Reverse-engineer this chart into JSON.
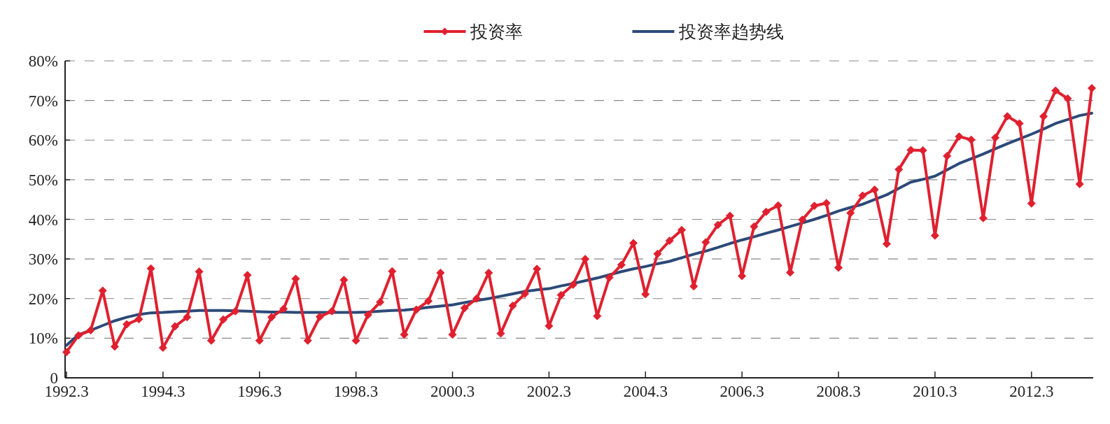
{
  "chart_data": {
    "type": "line",
    "categories": [
      "1992.3",
      null,
      null,
      null,
      null,
      null,
      null,
      null,
      "1994.3",
      null,
      null,
      null,
      null,
      null,
      null,
      null,
      "1996.3",
      null,
      null,
      null,
      null,
      null,
      null,
      null,
      "1998.3",
      null,
      null,
      null,
      null,
      null,
      null,
      null,
      "2000.3",
      null,
      null,
      null,
      null,
      null,
      null,
      null,
      "2002.3",
      null,
      null,
      null,
      null,
      null,
      null,
      null,
      "2004.3",
      null,
      null,
      null,
      null,
      null,
      null,
      null,
      "2006.3",
      null,
      null,
      null,
      null,
      null,
      null,
      null,
      "2008.3",
      null,
      null,
      null,
      null,
      null,
      null,
      null,
      "2010.3",
      null,
      null,
      null,
      null,
      null,
      null,
      null,
      "2012.3",
      null,
      null,
      null,
      null,
      null
    ],
    "series": [
      {
        "name": "投资率",
        "color": "#e0202f",
        "marker": "diamond",
        "values": [
          6.5,
          10.7,
          12,
          22,
          7.9,
          13.5,
          14.8,
          27.6,
          7.6,
          13,
          15.3,
          26.8,
          9.4,
          14.7,
          16.8,
          25.9,
          9.4,
          15.3,
          17.4,
          25,
          9.4,
          15.4,
          16.8,
          24.7,
          9.4,
          15.9,
          19.1,
          26.9,
          10.9,
          17.2,
          19.4,
          26.5,
          10.9,
          17.6,
          20,
          26.5,
          11.2,
          18.2,
          21.2,
          27.5,
          13.1,
          20.9,
          23.5,
          30,
          15.6,
          25.3,
          28.5,
          34,
          21.1,
          31.3,
          34.6,
          37.3,
          23.1,
          34.2,
          38.6,
          40.9,
          25.7,
          38.2,
          41.9,
          43.5,
          26.6,
          39.9,
          43.4,
          44.1,
          27.8,
          41.6,
          46,
          47.5,
          33.8,
          52.6,
          57.5,
          57.4,
          35.9,
          56,
          60.9,
          60.1,
          40.3,
          60.6,
          66,
          64.2,
          44,
          66,
          72.5,
          70.5,
          48.9,
          73.1
        ]
      },
      {
        "name": "投资率趋势线",
        "color": "#2c4a78",
        "marker": "none",
        "values": [
          8.2,
          10.9,
          12,
          13.2,
          14.4,
          15.3,
          16,
          16.4,
          16.5,
          16.7,
          16.8,
          17,
          17,
          17,
          16.9,
          16.8,
          16.7,
          16.6,
          16.6,
          16.5,
          16.5,
          16.5,
          16.5,
          16.5,
          16.5,
          16.6,
          16.8,
          17,
          17.1,
          17.4,
          17.8,
          18.1,
          18.4,
          19,
          19.5,
          20,
          20.6,
          21.2,
          21.8,
          22.2,
          22.5,
          23.2,
          23.8,
          24.5,
          25.2,
          26,
          26.8,
          27.5,
          28.1,
          28.8,
          29.4,
          30.3,
          31.2,
          32,
          32.9,
          33.9,
          34.8,
          35.6,
          36.5,
          37.3,
          38.2,
          39.1,
          40,
          41,
          42.1,
          43,
          43.8,
          45,
          46.2,
          47.8,
          49.4,
          50.1,
          50.9,
          52.5,
          54.1,
          55.3,
          56.5,
          57.8,
          59.1,
          60.3,
          61.5,
          62.8,
          64.2,
          65.2,
          66.2,
          66.8
        ]
      }
    ],
    "ylim": [
      0,
      80
    ],
    "yticks": [
      {
        "value": 0,
        "label": "0"
      },
      {
        "value": 10,
        "label": "10%"
      },
      {
        "value": 20,
        "label": "20%"
      },
      {
        "value": 30,
        "label": "30%"
      },
      {
        "value": 40,
        "label": "40%"
      },
      {
        "value": 50,
        "label": "50%"
      },
      {
        "value": 60,
        "label": "60%"
      },
      {
        "value": 70,
        "label": "70%"
      },
      {
        "value": 80,
        "label": "80%"
      }
    ],
    "grid": "y",
    "legend": "top",
    "line_style": "solid"
  }
}
